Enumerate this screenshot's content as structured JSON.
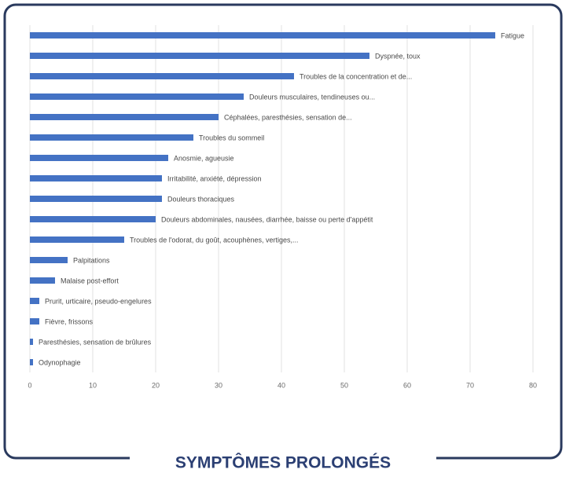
{
  "chart_data": {
    "type": "hbar",
    "title": "SYMPTÔMES PROLONGÉS",
    "categories": [
      "Fatigue",
      "Dyspnée, toux",
      "Troubles de la concentration et de...",
      "Douleurs musculaires, tendineuses ou...",
      "Céphalées, paresthésies, sensation de...",
      "Troubles du sommeil",
      "Anosmie, agueusie",
      "Irritabilité, anxiété, dépression",
      "Douleurs thoraciques",
      "Douleurs abdominales, nausées, diarrhée, baisse ou perte d'appétit",
      "Troubles de l'odorat, du goût, acouphènes, vertiges,...",
      "Palpitations",
      "Malaise post-effort",
      "Prurit, urticaire, pseudo-engelures",
      "Fièvre, frissons",
      "Paresthésies, sensation de brûlures",
      "Odynophagie"
    ],
    "values": [
      74,
      54,
      42,
      34,
      30,
      26,
      22,
      21,
      21,
      20,
      15,
      6,
      4,
      1.5,
      1.5,
      0.5,
      0.5
    ],
    "color": "#4472c4",
    "xlim": [
      0,
      80
    ],
    "xticks": [
      0,
      10,
      20,
      30,
      40,
      50,
      60,
      70,
      80
    ],
    "grid": true
  }
}
